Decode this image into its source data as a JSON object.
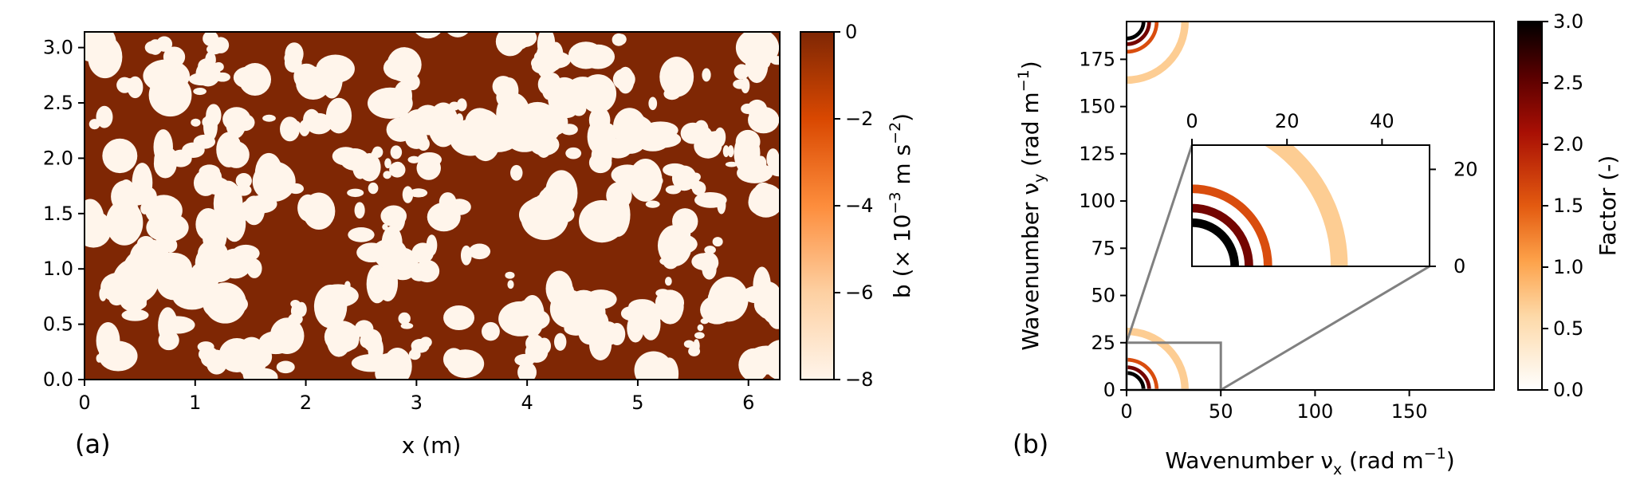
{
  "chart_data": [
    {
      "type": "heatmap",
      "panel_label": "(a)",
      "xlabel": "x (m)",
      "ylabel": "",
      "xlim": [
        0,
        6.283
      ],
      "ylim": [
        0,
        3.1416
      ],
      "xticks": [
        0,
        1,
        2,
        3,
        4,
        5,
        6
      ],
      "xtick_labels": [
        "0",
        "1",
        "2",
        "3",
        "4",
        "5",
        "6"
      ],
      "yticks": [
        0.0,
        0.5,
        1.0,
        1.5,
        2.0,
        2.5,
        3.0
      ],
      "ytick_labels": [
        "0.0",
        "0.5",
        "1.0",
        "1.5",
        "2.0",
        "2.5",
        "3.0"
      ],
      "colorbar": {
        "label_parts": [
          "b (× 10",
          "−3",
          " m s",
          "−2",
          ")"
        ],
        "range": [
          -8,
          0
        ],
        "ticks": [
          0,
          -2,
          -4,
          -6,
          -8
        ],
        "tick_labels": [
          "0",
          "−2",
          "−4",
          "−6",
          "−8"
        ],
        "colormap": "Oranges"
      },
      "field_description_values": {
        "background_value": 0,
        "blob_value": -8
      }
    },
    {
      "type": "heatmap",
      "panel_label": "(b)",
      "xlabel_parts": [
        "Wavenumber ν",
        "x",
        " (rad m",
        "−1",
        ")"
      ],
      "ylabel_parts": [
        "Wavenumber ν",
        "y",
        " (rad m",
        "−1",
        ")"
      ],
      "xlim": [
        0,
        195
      ],
      "ylim": [
        0,
        195
      ],
      "xticks": [
        0,
        50,
        100,
        150
      ],
      "xtick_labels": [
        "0",
        "50",
        "100",
        "150"
      ],
      "yticks": [
        0,
        25,
        50,
        75,
        100,
        125,
        150,
        175
      ],
      "ytick_labels": [
        "0",
        "25",
        "50",
        "75",
        "100",
        "125",
        "150",
        "175"
      ],
      "zoom_box": {
        "x": [
          0,
          50
        ],
        "y": [
          0,
          25
        ]
      },
      "inset": {
        "xlim": [
          0,
          50
        ],
        "ylim": [
          0,
          25
        ],
        "xticks": [
          0,
          20,
          40
        ],
        "xtick_labels": [
          "0",
          "20",
          "40"
        ],
        "yticks": [
          0,
          20
        ],
        "ytick_labels": [
          "0",
          "20"
        ]
      },
      "rings": [
        {
          "radius": 31,
          "width": 4,
          "factor": 0.7
        },
        {
          "radius": 16,
          "width": 2,
          "factor": 1.6
        },
        {
          "radius": 12,
          "width": 2,
          "factor": 2.4
        },
        {
          "radius": 9,
          "width": 2,
          "factor": 3.0
        }
      ],
      "colorbar": {
        "label": "Factor (-)",
        "range": [
          0.0,
          3.0
        ],
        "ticks": [
          0.0,
          0.5,
          1.0,
          1.5,
          2.0,
          2.5,
          3.0
        ],
        "tick_labels": [
          "0.0",
          "0.5",
          "1.0",
          "1.5",
          "2.0",
          "2.5",
          "3.0"
        ],
        "colormap": "gist_heat_r"
      }
    }
  ],
  "colors": {
    "dark_brown": "#7f2704",
    "blob_white": "#fff5eb",
    "zoom_line": "#808080"
  }
}
